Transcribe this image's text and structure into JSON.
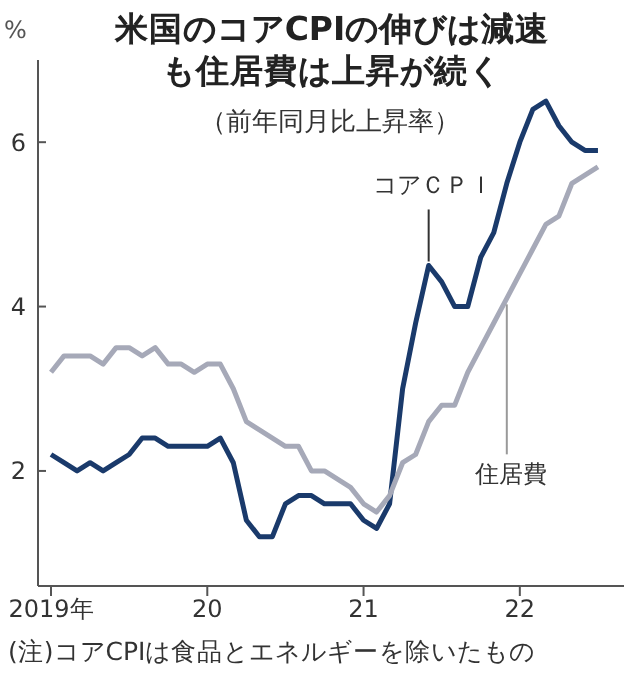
{
  "chart_data": {
    "type": "line",
    "title": "米国のコアCPIの伸びは減速も住居費は上昇が続く",
    "subtitle": "（前年同月比上昇率）",
    "ylabel": "%",
    "annotations": [
      "(注)コアCPIは食品とエネルギーを除いたもの"
    ],
    "x": [
      "2019-01",
      "2019-02",
      "2019-03",
      "2019-04",
      "2019-05",
      "2019-06",
      "2019-07",
      "2019-08",
      "2019-09",
      "2019-10",
      "2019-11",
      "2019-12",
      "2020-01",
      "2020-02",
      "2020-03",
      "2020-04",
      "2020-05",
      "2020-06",
      "2020-07",
      "2020-08",
      "2020-09",
      "2020-10",
      "2020-11",
      "2020-12",
      "2021-01",
      "2021-02",
      "2021-03",
      "2021-04",
      "2021-05",
      "2021-06",
      "2021-07",
      "2021-08",
      "2021-09",
      "2021-10",
      "2021-11",
      "2021-12",
      "2022-01",
      "2022-02",
      "2022-03",
      "2022-04",
      "2022-05",
      "2022-06",
      "2022-07"
    ],
    "series": [
      {
        "name": "コアＣＰＩ",
        "color": "#1a3a6b",
        "values": [
          2.2,
          2.1,
          2.0,
          2.1,
          2.0,
          2.1,
          2.2,
          2.4,
          2.4,
          2.3,
          2.3,
          2.3,
          2.3,
          2.4,
          2.1,
          1.4,
          1.2,
          1.2,
          1.6,
          1.7,
          1.7,
          1.6,
          1.6,
          1.6,
          1.4,
          1.3,
          1.6,
          3.0,
          3.8,
          4.5,
          4.3,
          4.0,
          4.0,
          4.6,
          4.9,
          5.5,
          6.0,
          6.4,
          6.5,
          6.2,
          6.0,
          5.9,
          5.9
        ]
      },
      {
        "name": "住居費",
        "color": "#a6a9b8",
        "values": [
          3.2,
          3.4,
          3.4,
          3.4,
          3.3,
          3.5,
          3.5,
          3.4,
          3.5,
          3.3,
          3.3,
          3.2,
          3.3,
          3.3,
          3.0,
          2.6,
          2.5,
          2.4,
          2.3,
          2.3,
          2.0,
          2.0,
          1.9,
          1.8,
          1.6,
          1.5,
          1.7,
          2.1,
          2.2,
          2.6,
          2.8,
          2.8,
          3.2,
          3.5,
          3.8,
          4.1,
          4.4,
          4.7,
          5.0,
          5.1,
          5.5,
          5.6,
          5.7
        ]
      }
    ],
    "xlim": [
      "2018-12",
      "2022-09"
    ],
    "xticks": [
      {
        "value": "2019-01",
        "label": "2019年"
      },
      {
        "value": "2020-01",
        "label": "20"
      },
      {
        "value": "2021-01",
        "label": "21"
      },
      {
        "value": "2022-01",
        "label": "22"
      }
    ],
    "ylim": [
      0.6,
      7
    ],
    "yticks": [
      2,
      4,
      6
    ],
    "grid": false,
    "legend": false,
    "marker": "none",
    "line_style": "solid"
  }
}
